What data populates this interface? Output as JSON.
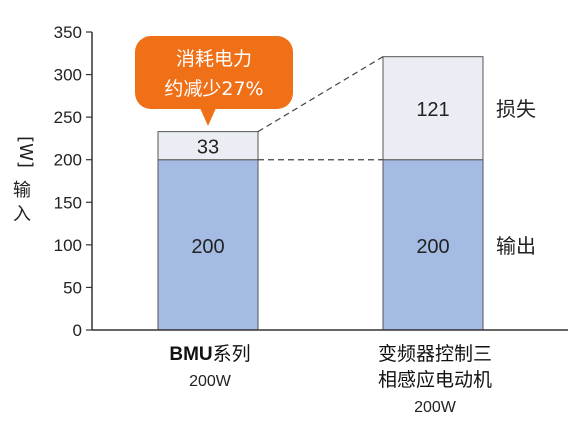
{
  "chart_data": {
    "type": "bar",
    "stacked": true,
    "ylabel_unit": "[W]",
    "ylabel": "输入",
    "ylim": [
      0,
      350
    ],
    "yticks": [
      0,
      50,
      100,
      150,
      200,
      250,
      300,
      350
    ],
    "grid": false,
    "categories": [
      {
        "name_bold": "BMU",
        "name_rest": "系列",
        "line2": "",
        "sub": "200W"
      },
      {
        "name_bold": "",
        "name_rest": "变频器控制三",
        "line2": "相感应电动机",
        "sub": "200W"
      }
    ],
    "series": [
      {
        "name": "输出",
        "values": [
          200,
          200
        ],
        "color": "#a4bce3"
      },
      {
        "name": "损失",
        "values": [
          33,
          121
        ],
        "color": "#eaeef4"
      }
    ],
    "segment_labels": [
      [
        "200",
        "33"
      ],
      [
        "200",
        "121"
      ]
    ],
    "callout": {
      "lines": [
        "消耗电力",
        "约减少27%"
      ],
      "color": "#f07018"
    }
  }
}
